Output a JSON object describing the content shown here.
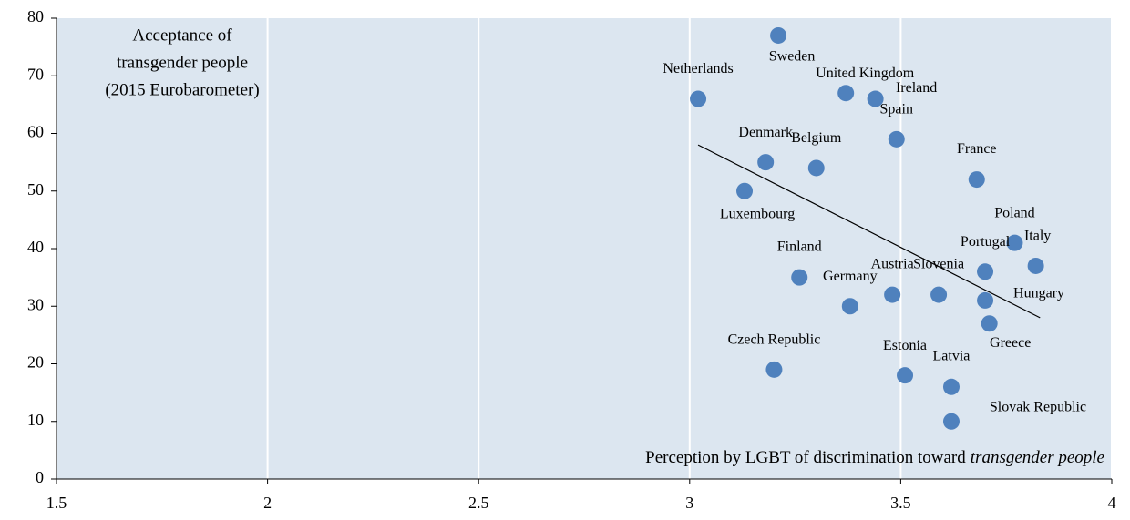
{
  "chart_data": {
    "type": "scatter",
    "y_label_lines": [
      "Acceptance of",
      "transgender people",
      "(2015 Eurobarometer)"
    ],
    "x_label": "Perception by LGBT of discrimination toward",
    "x_label_italic": "transgender people",
    "categories": [
      "Sweden",
      "Netherlands",
      "United Kingdom",
      "Ireland",
      "Spain",
      "Denmark",
      "Belgium",
      "France",
      "Luxembourg",
      "Poland",
      "Italy",
      "Portugal",
      "Finland",
      "Austria",
      "Slovenia",
      "Hungary",
      "Germany",
      "Greece",
      "Czech Republic",
      "Estonia",
      "Latvia",
      "Slovak Republic"
    ],
    "x": [
      3.21,
      3.02,
      3.37,
      3.44,
      3.49,
      3.18,
      3.3,
      3.68,
      3.13,
      3.77,
      3.82,
      3.7,
      3.26,
      3.48,
      3.59,
      3.7,
      3.38,
      3.71,
      3.2,
      3.51,
      3.62,
      3.62
    ],
    "values": [
      77,
      66,
      67,
      66,
      59,
      55,
      54,
      52,
      50,
      41,
      37,
      36,
      35,
      32,
      32,
      31,
      30,
      27,
      19,
      18,
      16,
      10
    ],
    "color": "#4f81bd",
    "trendline": {
      "x": [
        3.02,
        3.83
      ],
      "y": [
        58,
        28
      ]
    },
    "xlim": [
      1.5,
      4
    ],
    "xticks": [
      1.5,
      2,
      2.5,
      3,
      3.5,
      4
    ],
    "ylim": [
      0,
      80
    ],
    "yticks": [
      0,
      10,
      20,
      30,
      40,
      50,
      60,
      70,
      80
    ],
    "grid": true
  }
}
